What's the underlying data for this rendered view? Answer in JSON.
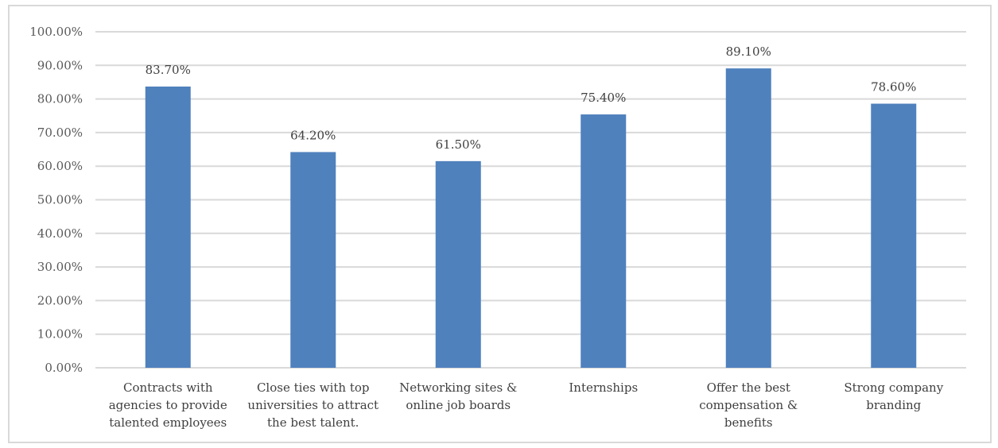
{
  "chart_data": {
    "type": "bar",
    "categories": [
      [
        "Contracts with",
        "agencies to provide",
        "talented employees"
      ],
      [
        "Close ties with top",
        "universities to attract",
        "the best talent."
      ],
      [
        "Networking sites &",
        "online job boards"
      ],
      [
        "Internships"
      ],
      [
        "Offer the best",
        "compensation &",
        "benefits"
      ],
      [
        "Strong company",
        "branding"
      ]
    ],
    "values": [
      83.7,
      64.2,
      61.5,
      75.4,
      89.1,
      78.6
    ],
    "data_labels": [
      "83.70%",
      "64.20%",
      "61.50%",
      "75.40%",
      "89.10%",
      "78.60%"
    ],
    "yticks": [
      0,
      10,
      20,
      30,
      40,
      50,
      60,
      70,
      80,
      90,
      100
    ],
    "ytick_labels": [
      "0.00%",
      "10.00%",
      "20.00%",
      "30.00%",
      "40.00%",
      "50.00%",
      "60.00%",
      "70.00%",
      "80.00%",
      "90.00%",
      "100.00%"
    ],
    "ylim": [
      0,
      100
    ],
    "title": "",
    "xlabel": "",
    "ylabel": "",
    "grid": true,
    "legend": "none",
    "bar_color": "#4f81bd",
    "grid_color": "#d9d9d9",
    "label_color": "#404040",
    "tick_color": "#595959"
  }
}
